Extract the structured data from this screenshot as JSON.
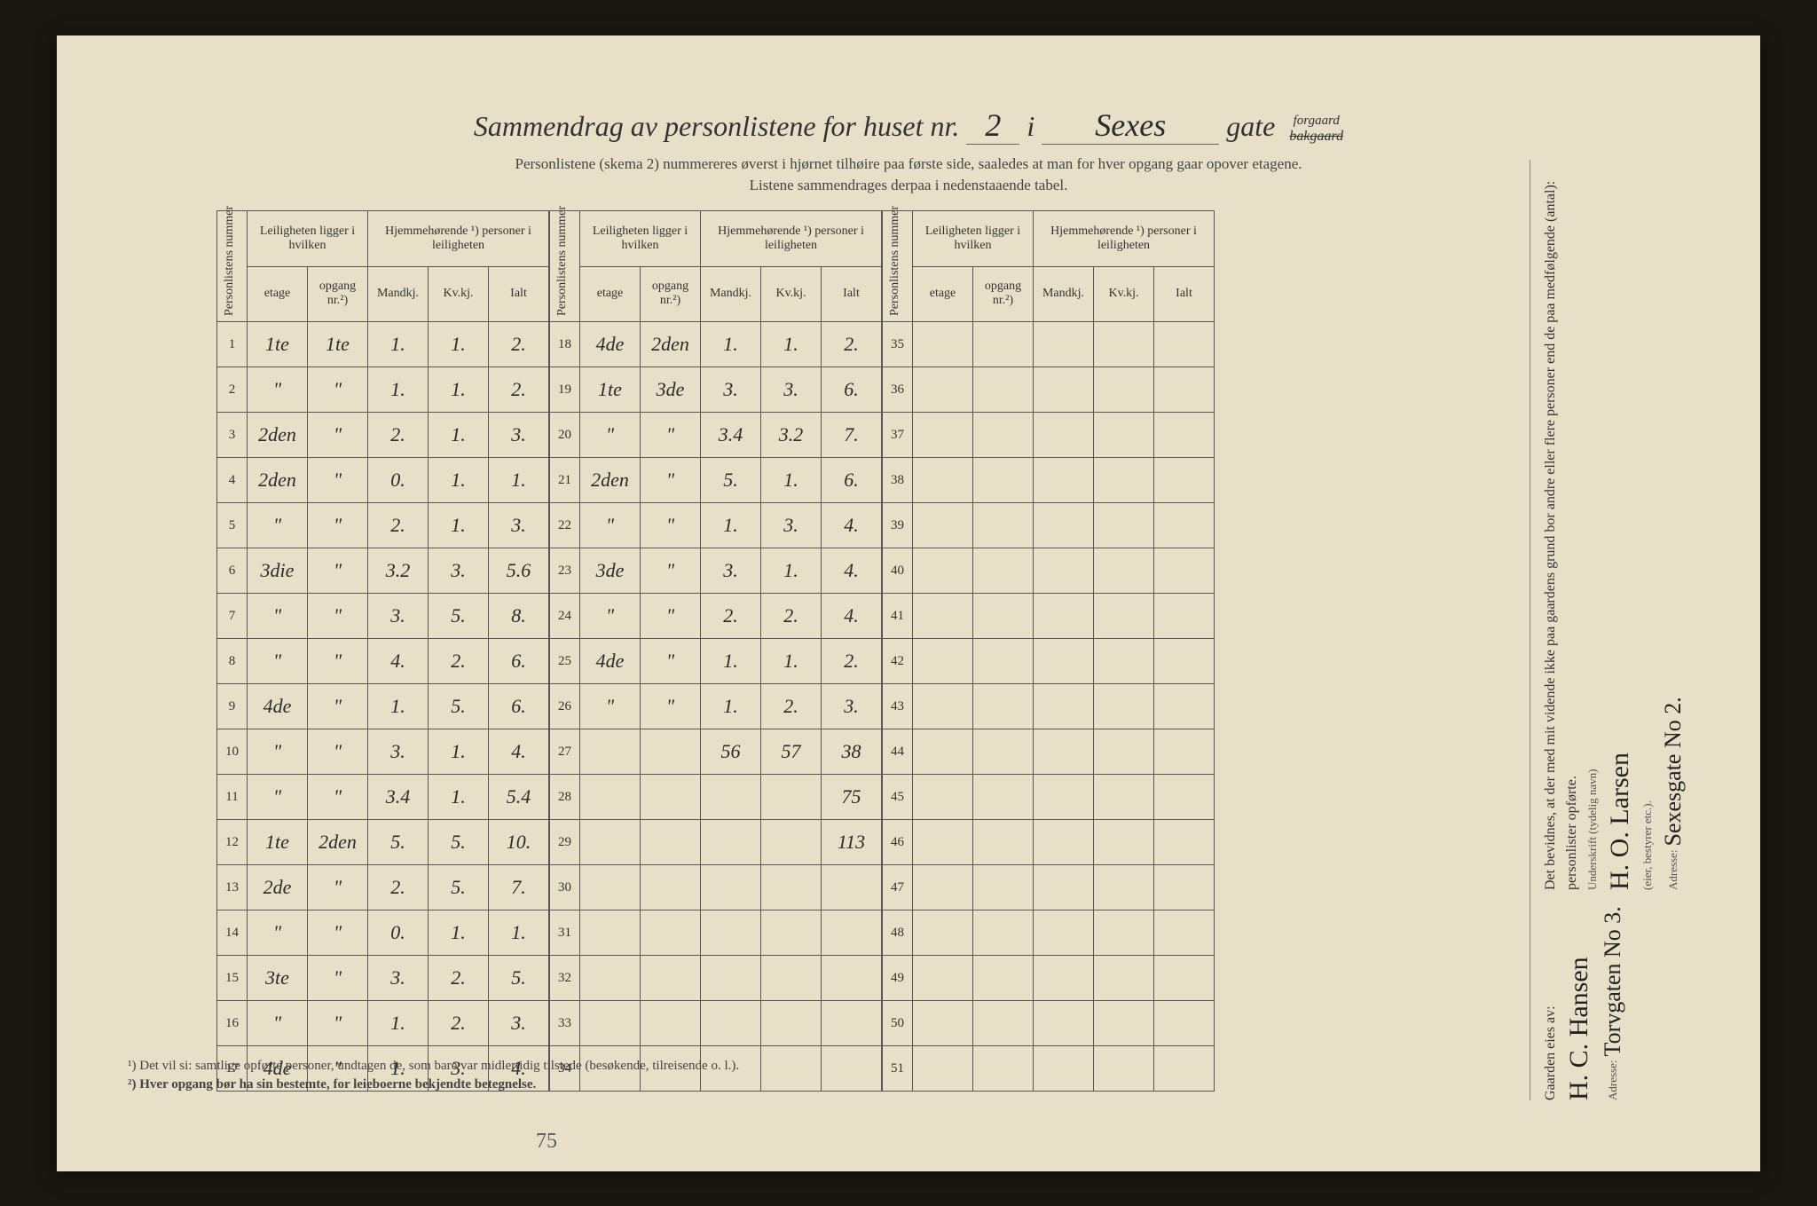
{
  "page": {
    "background": "#1a1612",
    "paper_color": "#e8dfc8",
    "border_color": "#555555",
    "text_color": "#333333",
    "hw_color": "#2b2b2b"
  },
  "title": {
    "prefix": "Sammendrag av personlistene for huset nr.",
    "house_nr": "2",
    "mid": "i",
    "street": "Sexes",
    "suffix_label": "gate",
    "forgaard": "forgaard",
    "bakgaard_crossed": "bakgaard"
  },
  "subtitle1": "Personlistene (skema 2) nummereres øverst i hjørnet tilhøire paa første side, saaledes at man for hver opgang gaar opover etagene.",
  "subtitle2": "Listene sammendrages derpaa i nedenstaaende tabel.",
  "headers": {
    "personlistens_nummer": "Personlistens nummer",
    "leiligheten": "Leiligheten ligger i hvilken",
    "hjemmehorende": "Hjemmehørende ¹) personer i leiligheten",
    "etage": "etage",
    "opgang": "opgang nr.²)",
    "mandkj": "Mandkj.",
    "kvkj": "Kv.kj.",
    "ialt": "Ialt"
  },
  "rows_block1": [
    {
      "n": "1",
      "et": "1te",
      "op": "1te",
      "m": "1.",
      "k": "1.",
      "i": "2."
    },
    {
      "n": "2",
      "et": "\"",
      "op": "\"",
      "m": "1.",
      "k": "1.",
      "i": "2."
    },
    {
      "n": "3",
      "et": "2den",
      "op": "\"",
      "m": "2.",
      "k": "1.",
      "i": "3."
    },
    {
      "n": "4",
      "et": "2den",
      "op": "\"",
      "m": "0.",
      "k": "1.",
      "i": "1."
    },
    {
      "n": "5",
      "et": "\"",
      "op": "\"",
      "m": "2.",
      "k": "1.",
      "i": "3."
    },
    {
      "n": "6",
      "et": "3die",
      "op": "\"",
      "m": "3.2",
      "k": "3.",
      "i": "5.6"
    },
    {
      "n": "7",
      "et": "\"",
      "op": "\"",
      "m": "3.",
      "k": "5.",
      "i": "8."
    },
    {
      "n": "8",
      "et": "\"",
      "op": "\"",
      "m": "4.",
      "k": "2.",
      "i": "6."
    },
    {
      "n": "9",
      "et": "4de",
      "op": "\"",
      "m": "1.",
      "k": "5.",
      "i": "6."
    },
    {
      "n": "10",
      "et": "\"",
      "op": "\"",
      "m": "3.",
      "k": "1.",
      "i": "4."
    },
    {
      "n": "11",
      "et": "\"",
      "op": "\"",
      "m": "3.4",
      "k": "1.",
      "i": "5.4"
    },
    {
      "n": "12",
      "et": "1te",
      "op": "2den",
      "m": "5.",
      "k": "5.",
      "i": "10."
    },
    {
      "n": "13",
      "et": "2de",
      "op": "\"",
      "m": "2.",
      "k": "5.",
      "i": "7."
    },
    {
      "n": "14",
      "et": "\"",
      "op": "\"",
      "m": "0.",
      "k": "1.",
      "i": "1."
    },
    {
      "n": "15",
      "et": "3te",
      "op": "\"",
      "m": "3.",
      "k": "2.",
      "i": "5."
    },
    {
      "n": "16",
      "et": "\"",
      "op": "\"",
      "m": "1.",
      "k": "2.",
      "i": "3."
    },
    {
      "n": "17",
      "et": "4de",
      "op": "\"",
      "m": "1.",
      "k": "3.",
      "i": "4."
    }
  ],
  "rows_block2": [
    {
      "n": "18",
      "et": "4de",
      "op": "2den",
      "m": "1.",
      "k": "1.",
      "i": "2."
    },
    {
      "n": "19",
      "et": "1te",
      "op": "3de",
      "m": "3.",
      "k": "3.",
      "i": "6."
    },
    {
      "n": "20",
      "et": "\"",
      "op": "\"",
      "m": "3.4",
      "k": "3.2",
      "i": "7."
    },
    {
      "n": "21",
      "et": "2den",
      "op": "\"",
      "m": "5.",
      "k": "1.",
      "i": "6."
    },
    {
      "n": "22",
      "et": "\"",
      "op": "\"",
      "m": "1.",
      "k": "3.",
      "i": "4."
    },
    {
      "n": "23",
      "et": "3de",
      "op": "\"",
      "m": "3.",
      "k": "1.",
      "i": "4."
    },
    {
      "n": "24",
      "et": "\"",
      "op": "\"",
      "m": "2.",
      "k": "2.",
      "i": "4."
    },
    {
      "n": "25",
      "et": "4de",
      "op": "\"",
      "m": "1.",
      "k": "1.",
      "i": "2."
    },
    {
      "n": "26",
      "et": "\"",
      "op": "\"",
      "m": "1.",
      "k": "2.",
      "i": "3."
    },
    {
      "n": "27",
      "et": "",
      "op": "",
      "m": "56",
      "k": "57",
      "i": "38"
    },
    {
      "n": "28",
      "et": "",
      "op": "",
      "m": "",
      "k": "",
      "i": "75"
    },
    {
      "n": "29",
      "et": "",
      "op": "",
      "m": "",
      "k": "",
      "i": "113"
    },
    {
      "n": "30",
      "et": "",
      "op": "",
      "m": "",
      "k": "",
      "i": ""
    },
    {
      "n": "31",
      "et": "",
      "op": "",
      "m": "",
      "k": "",
      "i": ""
    },
    {
      "n": "32",
      "et": "",
      "op": "",
      "m": "",
      "k": "",
      "i": ""
    },
    {
      "n": "33",
      "et": "",
      "op": "",
      "m": "",
      "k": "",
      "i": ""
    },
    {
      "n": "34",
      "et": "",
      "op": "",
      "m": "",
      "k": "",
      "i": ""
    }
  ],
  "rows_block3": [
    {
      "n": "35",
      "et": "",
      "op": "",
      "m": "",
      "k": "",
      "i": ""
    },
    {
      "n": "36",
      "et": "",
      "op": "",
      "m": "",
      "k": "",
      "i": ""
    },
    {
      "n": "37",
      "et": "",
      "op": "",
      "m": "",
      "k": "",
      "i": ""
    },
    {
      "n": "38",
      "et": "",
      "op": "",
      "m": "",
      "k": "",
      "i": ""
    },
    {
      "n": "39",
      "et": "",
      "op": "",
      "m": "",
      "k": "",
      "i": ""
    },
    {
      "n": "40",
      "et": "",
      "op": "",
      "m": "",
      "k": "",
      "i": ""
    },
    {
      "n": "41",
      "et": "",
      "op": "",
      "m": "",
      "k": "",
      "i": ""
    },
    {
      "n": "42",
      "et": "",
      "op": "",
      "m": "",
      "k": "",
      "i": ""
    },
    {
      "n": "43",
      "et": "",
      "op": "",
      "m": "",
      "k": "",
      "i": ""
    },
    {
      "n": "44",
      "et": "",
      "op": "",
      "m": "",
      "k": "",
      "i": ""
    },
    {
      "n": "45",
      "et": "",
      "op": "",
      "m": "",
      "k": "",
      "i": ""
    },
    {
      "n": "46",
      "et": "",
      "op": "",
      "m": "",
      "k": "",
      "i": ""
    },
    {
      "n": "47",
      "et": "",
      "op": "",
      "m": "",
      "k": "",
      "i": ""
    },
    {
      "n": "48",
      "et": "",
      "op": "",
      "m": "",
      "k": "",
      "i": ""
    },
    {
      "n": "49",
      "et": "",
      "op": "",
      "m": "",
      "k": "",
      "i": ""
    },
    {
      "n": "50",
      "et": "",
      "op": "",
      "m": "",
      "k": "",
      "i": ""
    },
    {
      "n": "51",
      "et": "",
      "op": "",
      "m": "",
      "k": "",
      "i": ""
    }
  ],
  "footnotes": {
    "fn1_label": "¹)",
    "fn1_text": "Det vil si: samtlige opførte personer, undtagen de, som bare var midlertidig tilstede (besøkende, tilreisende o. l.).",
    "fn2_label": "²)",
    "fn2_text": "Hver opgang bør ha sin bestemte, for leieboerne bekjendte betegnelse."
  },
  "bottom_hw": "75",
  "right_panel": {
    "gaarden_label": "Gaarden eies av:",
    "owner_name": "H. C. Hansen",
    "owner_addr_label": "Adresse:",
    "owner_addr": "Torvgaten No 3.",
    "bevidnes": "Det bevidnes, at der med mit vidende ikke paa gaardens grund bor andre eller flere personer end de paa medfølgende (antal):",
    "personlister": "personlister opførte.",
    "underskrift_label": "Underskrift (tydelig navn)",
    "signer_name": "H. O. Larsen",
    "signer_role": "(eier, bestyrer etc.).",
    "signer_addr_label": "Adresse:",
    "signer_addr": "Sexesgate No 2."
  }
}
